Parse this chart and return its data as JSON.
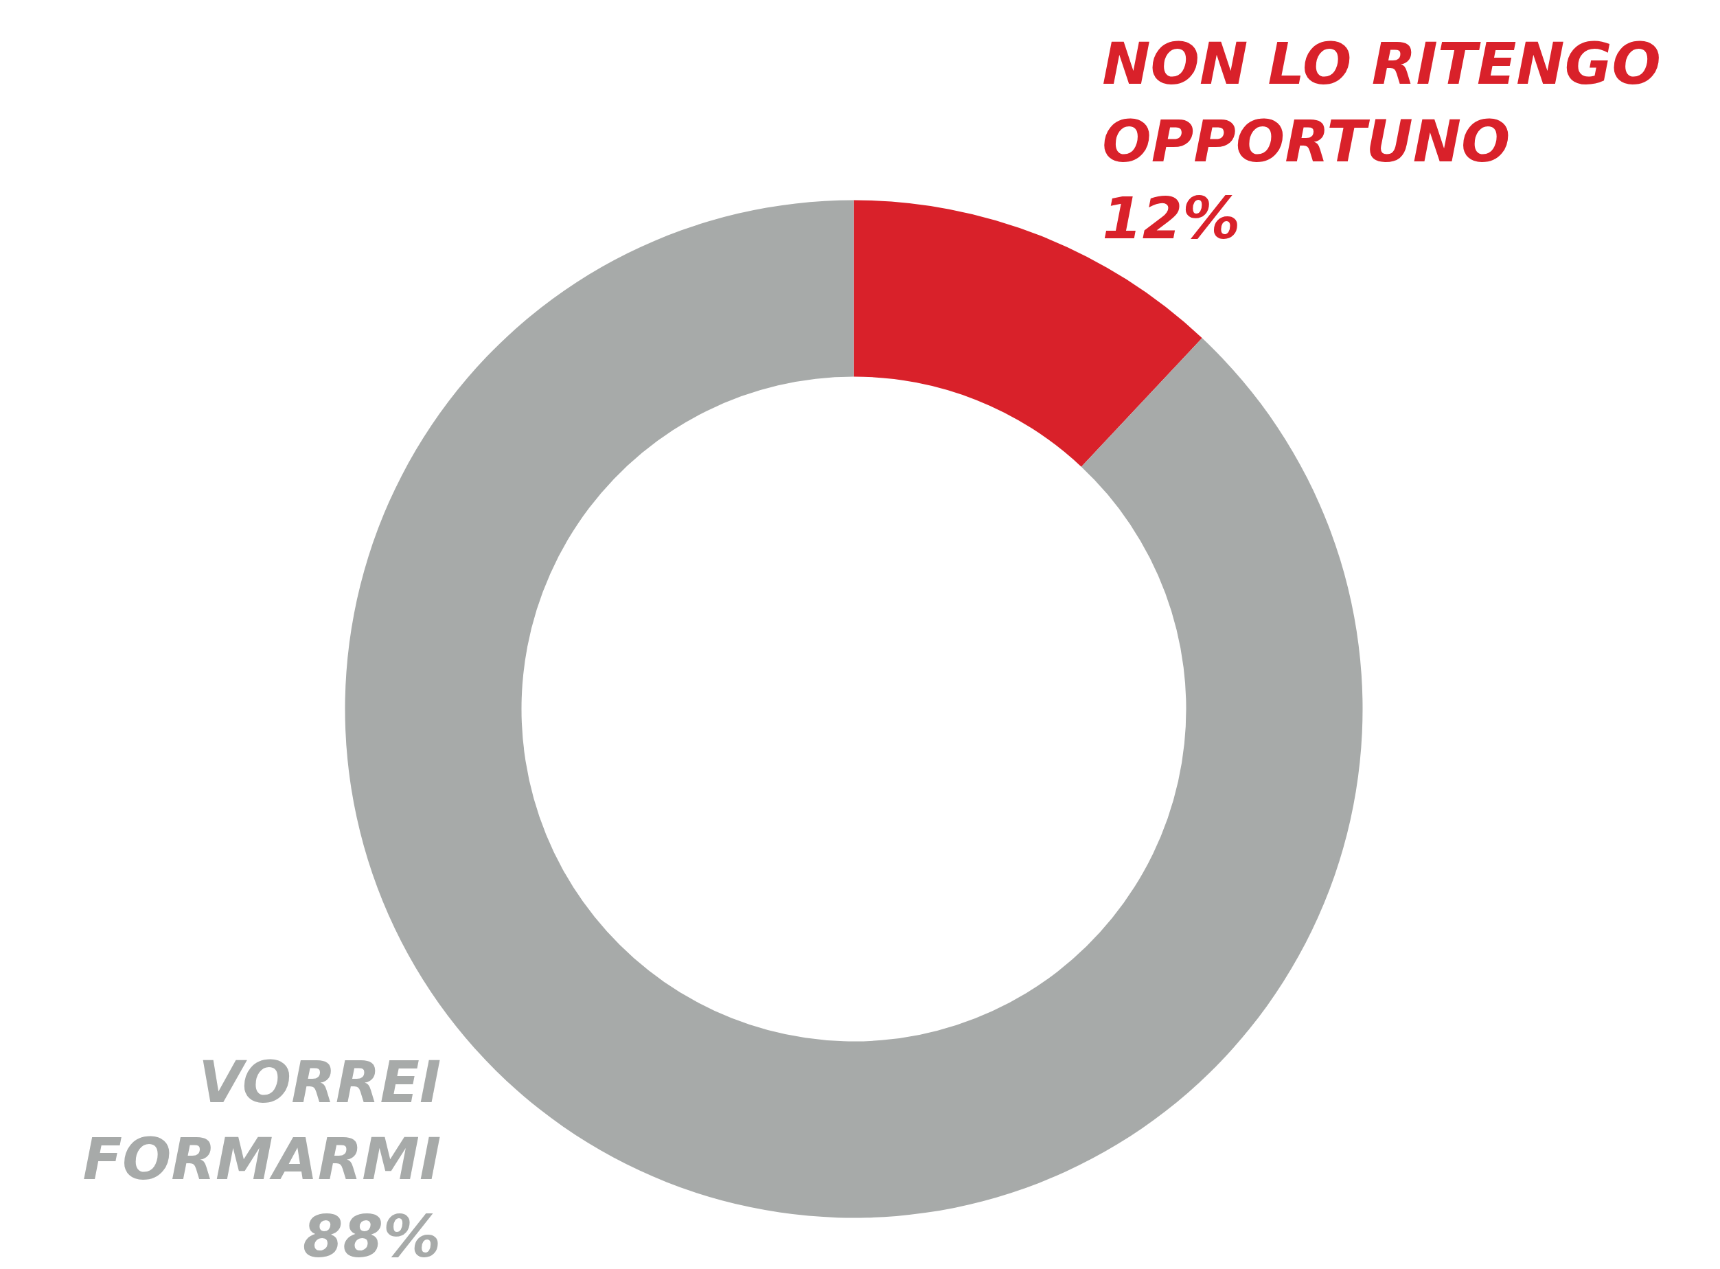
{
  "chart_data": {
    "type": "donut",
    "categories": [
      "NON LO RITENGO OPPORTUNO",
      "VORREI FORMARMI"
    ],
    "values": [
      12,
      88
    ],
    "colors": [
      "#d9212a",
      "#a7aaa9"
    ],
    "value_labels": [
      "12%",
      "88%"
    ]
  }
}
